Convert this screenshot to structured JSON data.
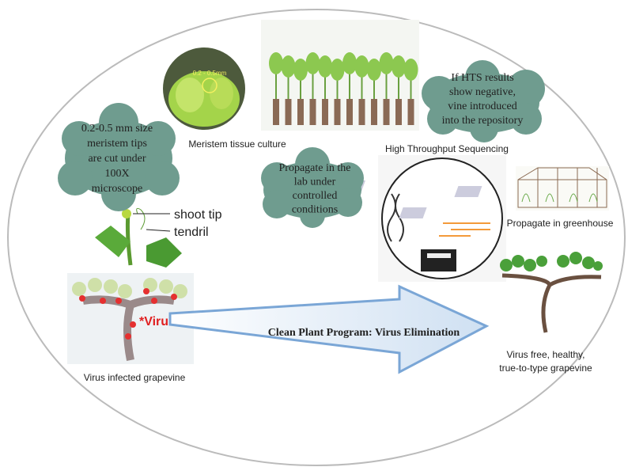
{
  "micro_label": "0.2 - 0.5mm",
  "meristem_label": "Meristem tissue culture",
  "hts_label": "High Throughput Sequencing",
  "greenhouse_label": "Propagate in greenhouse",
  "shoot_tip": "shoot tip",
  "tendril": "tendril",
  "virus_tag": "*Virus",
  "arrow_label": "Clean Plant Program: Virus Elimination",
  "infected_label": "Virus infected grapevine",
  "healthy_label": [
    "Virus free, healthy,",
    "true-to-type grapevine"
  ],
  "clouds": [
    {
      "lines": [
        "0.2-0.5 mm size",
        "meristem tips",
        "are cut under",
        "100X",
        "microscope"
      ]
    },
    {
      "lines": [
        "Propagate in the",
        "lab under",
        "controlled",
        "conditions"
      ]
    },
    {
      "lines": [
        "If HTS results",
        "show negative,",
        "vine introduced",
        "into the repository"
      ]
    }
  ]
}
